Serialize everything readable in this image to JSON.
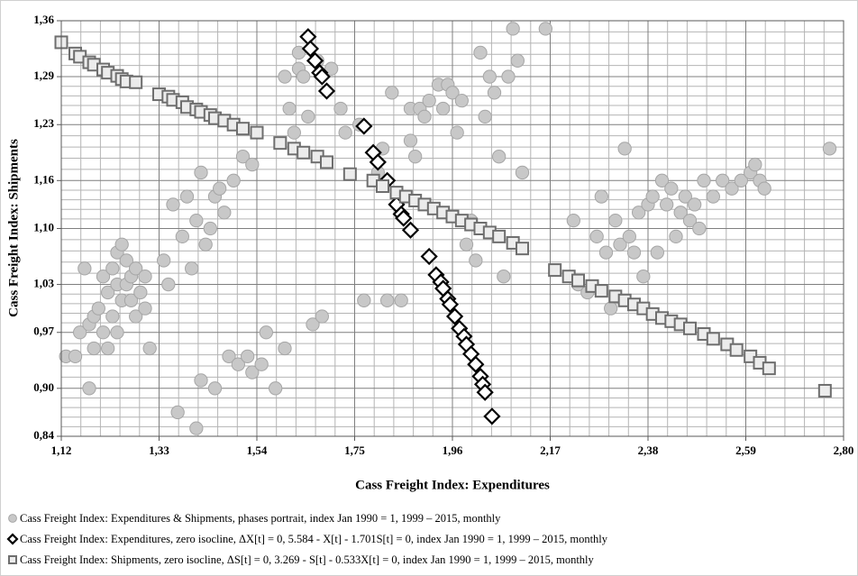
{
  "chart_data": {
    "type": "scatter",
    "x_label": "Cass Freight Index: Expenditures",
    "y_label": "Cass Freight Index: Shipments",
    "xlim": [
      1.12,
      2.8
    ],
    "ylim": [
      0.84,
      1.36
    ],
    "xticks": [
      {
        "value": 1.12,
        "label": "1,12"
      },
      {
        "value": 1.33,
        "label": "1,33"
      },
      {
        "value": 1.54,
        "label": "1,54"
      },
      {
        "value": 1.75,
        "label": "1,75"
      },
      {
        "value": 1.96,
        "label": "1,96"
      },
      {
        "value": 2.17,
        "label": "2,17"
      },
      {
        "value": 2.38,
        "label": "2,38"
      },
      {
        "value": 2.59,
        "label": "2,59"
      },
      {
        "value": 2.8,
        "label": "2,80"
      }
    ],
    "yticks": [
      {
        "value": 0.84,
        "label": "0,84"
      },
      {
        "value": 0.9,
        "label": "0,90"
      },
      {
        "value": 0.97,
        "label": "0,97"
      },
      {
        "value": 1.03,
        "label": "1,03"
      },
      {
        "value": 1.1,
        "label": "1,10"
      },
      {
        "value": 1.16,
        "label": "1,16"
      },
      {
        "value": 1.23,
        "label": "1,23"
      },
      {
        "value": 1.29,
        "label": "1,29"
      },
      {
        "value": 1.36,
        "label": "1,36"
      }
    ],
    "grid": true,
    "minor_divisions": 5,
    "legend": "bottom",
    "series": [
      {
        "name": "Cass Freight Index: Expenditures & Shipments, phases portrait, index Jan 1990 = 1, 1999 – 2015, monthly",
        "marker": "circle",
        "color": "#c8c8c8",
        "x": [
          1.13,
          1.15,
          1.16,
          1.17,
          1.18,
          1.18,
          1.19,
          1.19,
          1.2,
          1.21,
          1.21,
          1.22,
          1.22,
          1.23,
          1.23,
          1.24,
          1.24,
          1.25,
          1.25,
          1.26,
          1.26,
          1.27,
          1.27,
          1.28,
          1.28,
          1.29,
          1.3,
          1.31,
          1.3,
          1.24,
          1.34,
          1.35,
          1.36,
          1.37,
          1.38,
          1.39,
          1.4,
          1.41,
          1.41,
          1.42,
          1.42,
          1.43,
          1.44,
          1.45,
          1.45,
          1.46,
          1.47,
          1.48,
          1.49,
          1.5,
          1.51,
          1.52,
          1.53,
          1.53,
          1.55,
          1.56,
          1.58,
          1.6,
          1.61,
          1.62,
          1.6,
          1.63,
          1.64,
          1.63,
          1.65,
          1.66,
          1.67,
          1.68,
          1.7,
          1.72,
          1.73,
          1.76,
          1.77,
          1.8,
          1.81,
          1.82,
          1.83,
          1.85,
          1.87,
          1.87,
          1.88,
          1.89,
          1.9,
          1.91,
          1.93,
          1.94,
          1.95,
          1.96,
          1.97,
          1.98,
          1.99,
          2.0,
          2.01,
          2.02,
          2.03,
          2.04,
          2.05,
          2.06,
          2.07,
          2.08,
          2.09,
          2.1,
          2.11,
          2.16,
          2.22,
          2.23,
          2.25,
          2.27,
          2.28,
          2.29,
          2.3,
          2.31,
          2.32,
          2.33,
          2.34,
          2.35,
          2.36,
          2.37,
          2.38,
          2.39,
          2.4,
          2.41,
          2.42,
          2.43,
          2.44,
          2.45,
          2.46,
          2.47,
          2.48,
          2.49,
          2.5,
          2.52,
          2.54,
          2.56,
          2.58,
          2.6,
          2.61,
          2.62,
          2.63,
          2.77
        ],
        "values": [
          0.94,
          0.94,
          0.97,
          1.05,
          0.98,
          0.9,
          0.99,
          0.95,
          1.0,
          0.97,
          1.04,
          1.02,
          0.95,
          0.99,
          1.05,
          1.07,
          1.03,
          1.08,
          1.01,
          1.06,
          1.03,
          1.04,
          1.01,
          0.99,
          1.05,
          1.02,
          1.04,
          0.95,
          1.0,
          0.97,
          1.06,
          1.03,
          1.13,
          0.87,
          1.09,
          1.14,
          1.05,
          1.11,
          0.85,
          0.91,
          1.17,
          1.08,
          1.1,
          1.14,
          0.9,
          1.15,
          1.12,
          0.94,
          1.16,
          0.93,
          1.19,
          0.94,
          0.92,
          1.18,
          0.93,
          0.97,
          0.9,
          0.95,
          1.25,
          1.22,
          1.29,
          1.3,
          1.29,
          1.32,
          1.24,
          0.98,
          1.31,
          0.99,
          1.3,
          1.25,
          1.22,
          1.23,
          1.01,
          1.17,
          1.2,
          1.01,
          1.27,
          1.01,
          1.25,
          1.21,
          1.19,
          1.25,
          1.24,
          1.26,
          1.28,
          1.25,
          1.28,
          1.27,
          1.22,
          1.26,
          1.08,
          1.11,
          1.06,
          1.32,
          1.24,
          1.29,
          1.27,
          1.19,
          1.04,
          1.29,
          1.35,
          1.31,
          1.17,
          1.35,
          1.11,
          1.03,
          1.02,
          1.09,
          1.14,
          1.07,
          1.0,
          1.11,
          1.08,
          1.2,
          1.09,
          1.07,
          1.12,
          1.04,
          1.13,
          1.14,
          1.07,
          1.16,
          1.13,
          1.15,
          1.09,
          1.12,
          1.14,
          1.11,
          1.13,
          1.1,
          1.16,
          1.14,
          1.16,
          1.15,
          1.16,
          1.17,
          1.18,
          1.16,
          1.15,
          1.2
        ]
      },
      {
        "name": "Cass Freight Index: Expenditures, zero isocline, ΔX[t] = 0, 5.584 - X[t] - 1.701S[t] = 0, index Jan 1990 = 1, 1999 – 2015, monthly",
        "marker": "diamond",
        "color": "#000000",
        "x": [
          1.65,
          1.655,
          1.665,
          1.675,
          1.68,
          1.69,
          1.77,
          1.79,
          1.8,
          1.82,
          1.84,
          1.85,
          1.855,
          1.87,
          1.91,
          1.925,
          1.935,
          1.94,
          1.95,
          1.955,
          1.965,
          1.975,
          1.985,
          1.99,
          2.0,
          2.01,
          2.02,
          2.025,
          2.03,
          2.045
        ],
        "values": [
          1.34,
          1.325,
          1.31,
          1.295,
          1.29,
          1.272,
          1.228,
          1.195,
          1.183,
          1.16,
          1.13,
          1.118,
          1.113,
          1.098,
          1.065,
          1.042,
          1.033,
          1.025,
          1.012,
          1.005,
          0.99,
          0.975,
          0.965,
          0.955,
          0.943,
          0.93,
          0.915,
          0.905,
          0.895,
          0.865
        ]
      },
      {
        "name": "Cass Freight Index: Shipments, zero isocline, ΔS[t] = 0, 3.269 - S[t] - 0.533X[t] = 0, index Jan 1990 = 1, 1999 – 2015, monthly",
        "marker": "square",
        "color": "#6e6e6e",
        "x": [
          1.12,
          1.15,
          1.16,
          1.18,
          1.19,
          1.21,
          1.22,
          1.24,
          1.25,
          1.26,
          1.28,
          1.33,
          1.35,
          1.36,
          1.38,
          1.39,
          1.41,
          1.42,
          1.44,
          1.45,
          1.47,
          1.49,
          1.51,
          1.54,
          1.59,
          1.62,
          1.64,
          1.67,
          1.69,
          1.74,
          1.79,
          1.81,
          1.84,
          1.86,
          1.88,
          1.9,
          1.92,
          1.94,
          1.96,
          1.98,
          2.0,
          2.02,
          2.04,
          2.06,
          2.09,
          2.11,
          2.18,
          2.21,
          2.23,
          2.26,
          2.28,
          2.31,
          2.33,
          2.35,
          2.37,
          2.39,
          2.41,
          2.43,
          2.45,
          2.47,
          2.5,
          2.52,
          2.55,
          2.57,
          2.6,
          2.62,
          2.64,
          2.76
        ],
        "values": [
          1.333,
          1.319,
          1.315,
          1.308,
          1.305,
          1.299,
          1.295,
          1.291,
          1.287,
          1.284,
          1.283,
          1.268,
          1.265,
          1.261,
          1.258,
          1.252,
          1.249,
          1.246,
          1.242,
          1.238,
          1.235,
          1.23,
          1.225,
          1.22,
          1.207,
          1.2,
          1.195,
          1.19,
          1.183,
          1.168,
          1.16,
          1.153,
          1.145,
          1.14,
          1.135,
          1.13,
          1.125,
          1.12,
          1.115,
          1.11,
          1.105,
          1.1,
          1.095,
          1.09,
          1.082,
          1.075,
          1.048,
          1.04,
          1.035,
          1.028,
          1.022,
          1.015,
          1.01,
          1.005,
          1.0,
          0.993,
          0.988,
          0.984,
          0.98,
          0.975,
          0.968,
          0.962,
          0.955,
          0.948,
          0.94,
          0.932,
          0.925,
          0.897
        ]
      }
    ]
  }
}
